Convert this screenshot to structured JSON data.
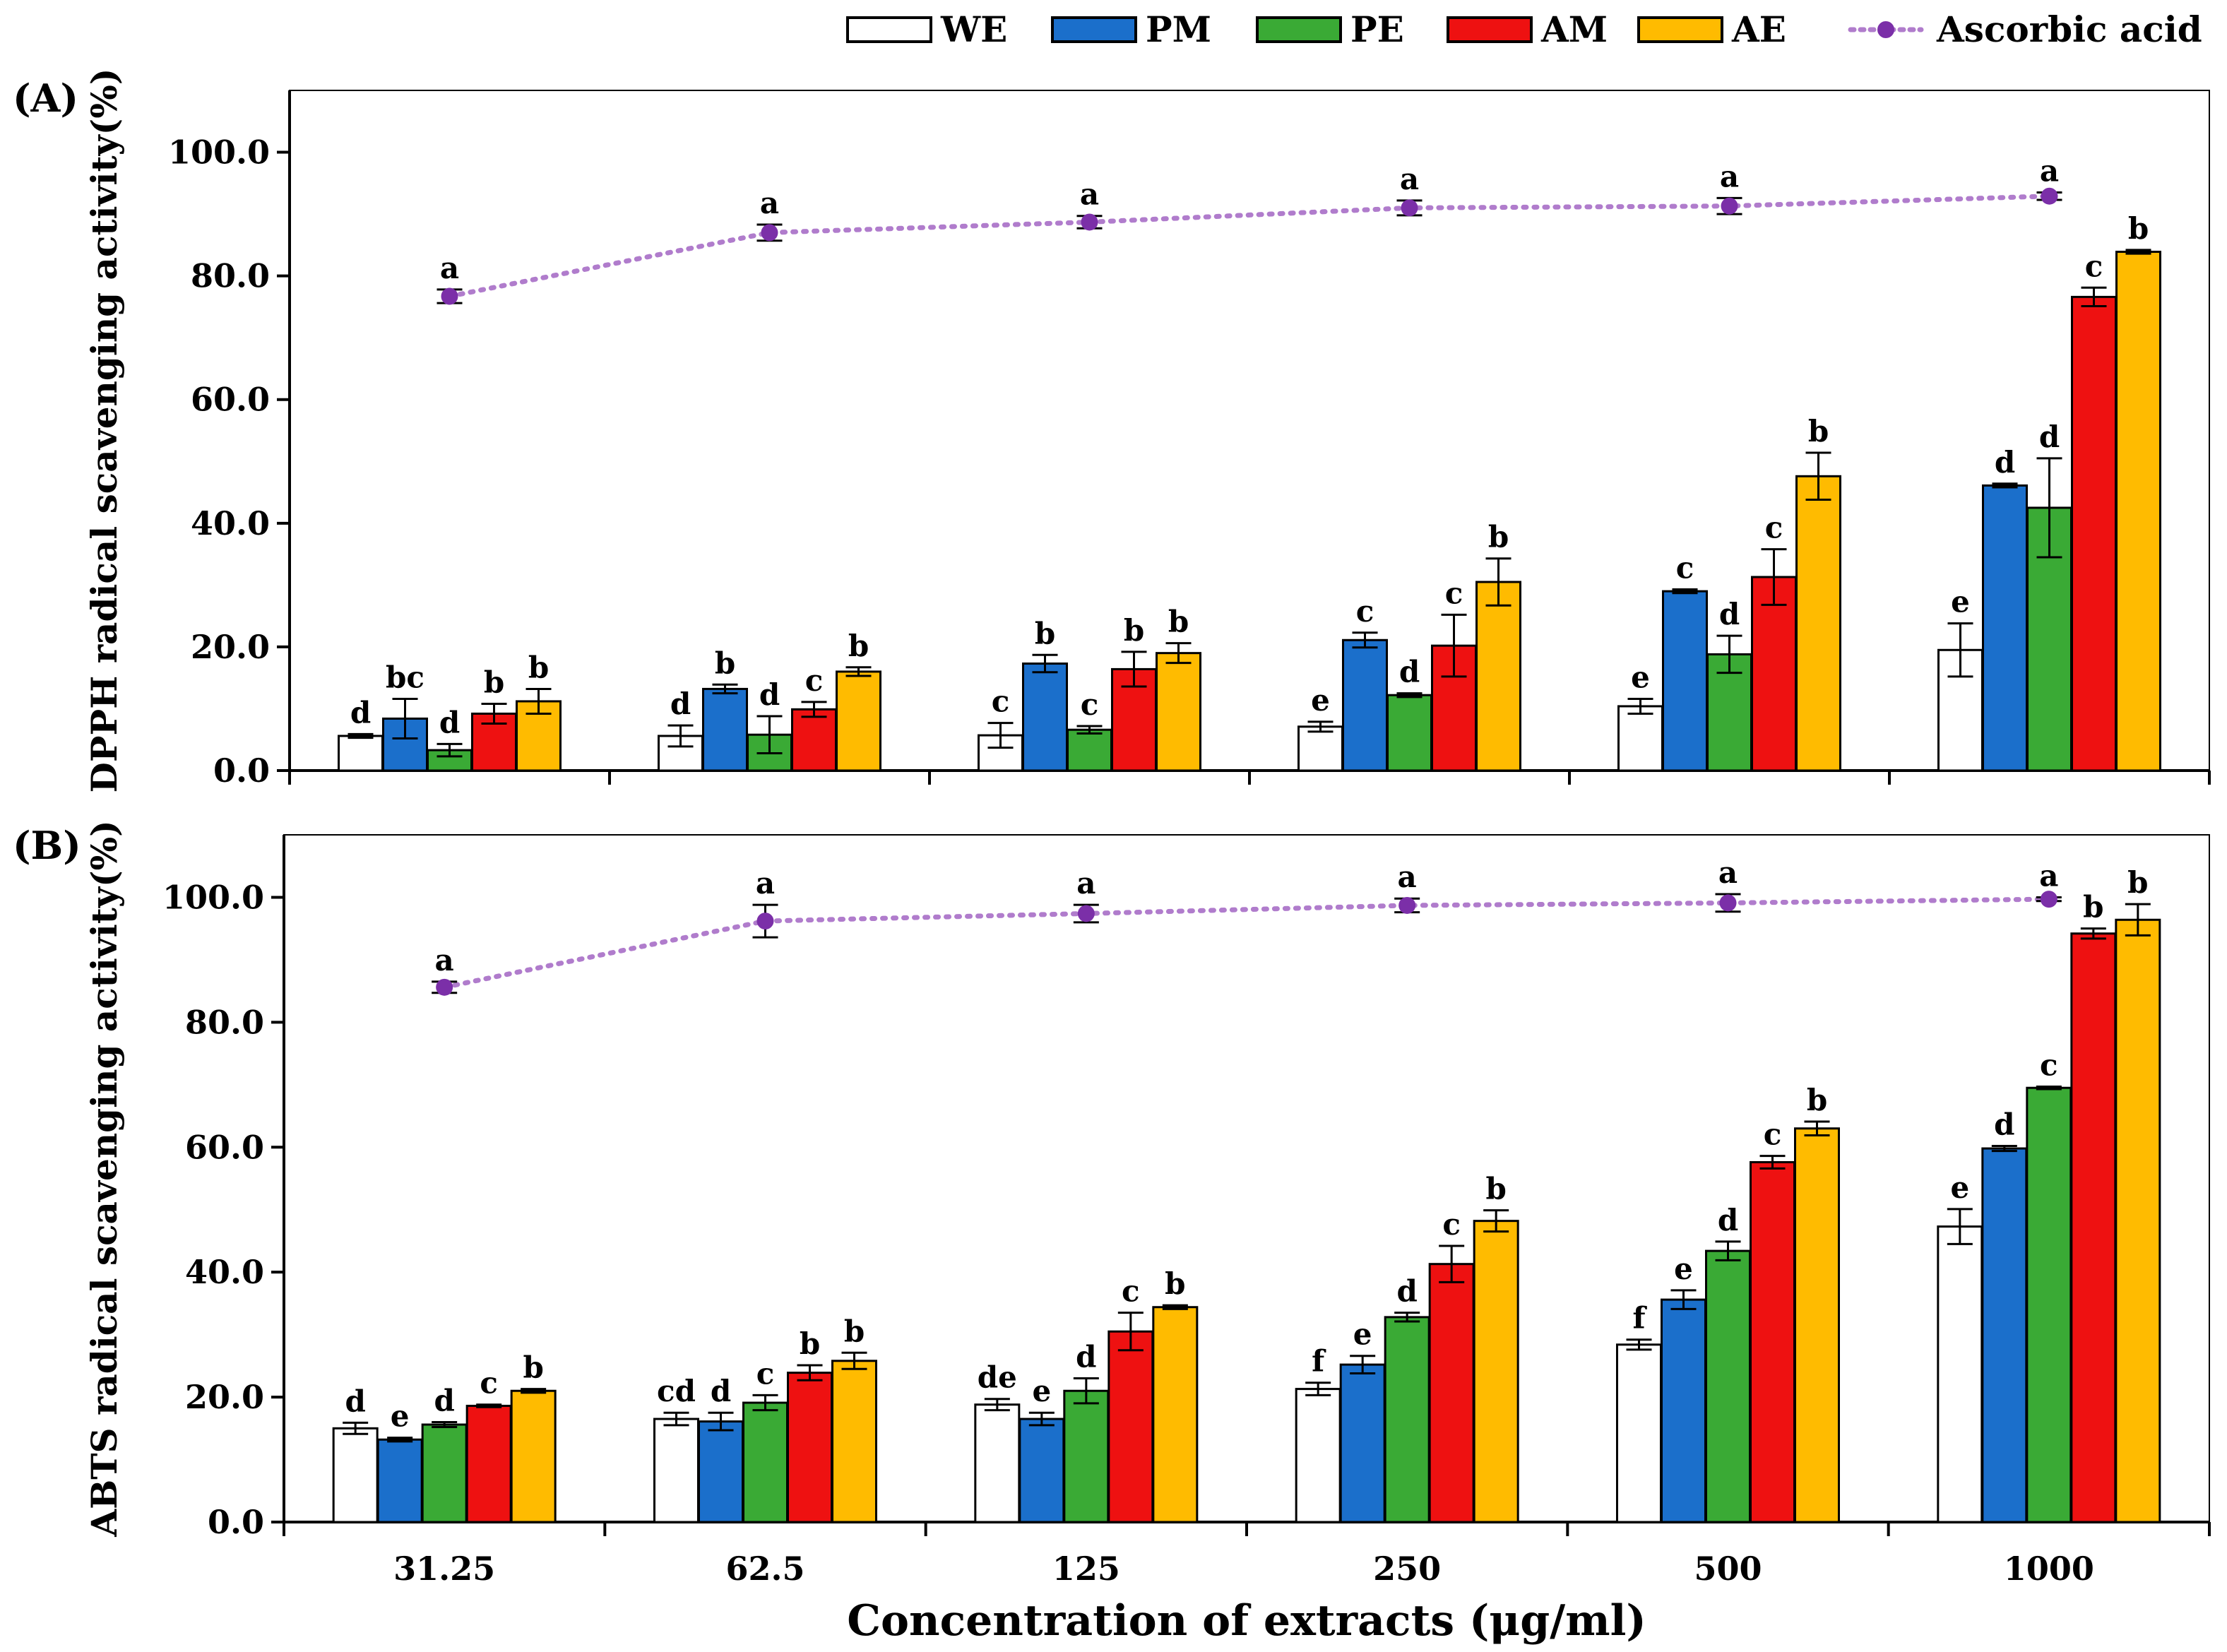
{
  "legend": {
    "items": [
      {
        "label": "WE",
        "kind": "bar",
        "color": "#ffffff"
      },
      {
        "label": "PM",
        "kind": "bar",
        "color": "#1b6fcb"
      },
      {
        "label": "PE",
        "kind": "bar",
        "color": "#3aaa35"
      },
      {
        "label": "AM",
        "kind": "bar",
        "color": "#ee1111"
      },
      {
        "label": "AE",
        "kind": "bar",
        "color": "#ffbb00"
      },
      {
        "label": "Ascorbic acid",
        "kind": "line",
        "color": "#8d3fb8"
      }
    ]
  },
  "colors": {
    "axis": "#000000",
    "error_bar": "#000000",
    "line": "#b07ccc",
    "marker": "#7b2fa8"
  },
  "chart_data": [
    {
      "type": "bar",
      "panel_label": "(A)",
      "ylabel": "DPPH radical scavenging activity(%)",
      "xlabel": "",
      "ylim": [
        0,
        110
      ],
      "yticks": [
        "0.0",
        "20.0",
        "40.0",
        "60.0",
        "80.0",
        "100.0"
      ],
      "ytick_values": [
        0,
        20,
        40,
        60,
        80,
        100
      ],
      "show_xtick_labels": false,
      "categories": [
        "31.25",
        "62.5",
        "125",
        "250",
        "500",
        "1000"
      ],
      "series": [
        {
          "name": "WE",
          "values": [
            5.6,
            5.6,
            5.7,
            7.1,
            10.4,
            19.5
          ],
          "errors": [
            0.3,
            1.7,
            2.0,
            0.8,
            1.2,
            4.3
          ],
          "letters": [
            "d",
            "d",
            "c",
            "e",
            "e",
            "e"
          ]
        },
        {
          "name": "PM",
          "values": [
            8.4,
            13.2,
            17.3,
            21.1,
            29.0,
            46.1
          ],
          "errors": [
            3.2,
            0.7,
            1.4,
            1.2,
            0.3,
            0.3
          ],
          "letters": [
            "bc",
            "b",
            "b",
            "c",
            "c",
            "d"
          ]
        },
        {
          "name": "PE",
          "values": [
            3.3,
            5.8,
            6.6,
            12.2,
            18.8,
            42.5
          ],
          "errors": [
            1.0,
            3.0,
            0.6,
            0.3,
            3.0,
            8.0
          ],
          "letters": [
            "d",
            "d",
            "c",
            "d",
            "d",
            "d"
          ]
        },
        {
          "name": "AM",
          "values": [
            9.2,
            9.9,
            16.4,
            20.2,
            31.3,
            76.6
          ],
          "errors": [
            1.6,
            1.2,
            2.8,
            5.0,
            4.5,
            1.5
          ],
          "letters": [
            "b",
            "c",
            "b",
            "c",
            "c",
            "c"
          ]
        },
        {
          "name": "AE",
          "values": [
            11.2,
            16.0,
            19.0,
            30.5,
            47.6,
            83.9
          ],
          "errors": [
            2.0,
            0.7,
            1.6,
            3.8,
            3.8,
            0.3
          ],
          "letters": [
            "b",
            "b",
            "b",
            "b",
            "b",
            "b"
          ]
        }
      ],
      "line_series": {
        "name": "Ascorbic acid",
        "values": [
          76.7,
          87.0,
          88.7,
          91.0,
          91.3,
          92.9
        ],
        "errors": [
          1.1,
          1.3,
          1.0,
          1.2,
          1.3,
          0.6
        ],
        "letters": [
          "a",
          "a",
          "a",
          "a",
          "a",
          "a"
        ]
      }
    },
    {
      "type": "bar",
      "panel_label": "(B)",
      "ylabel": "ABTS radical scavenging activity(%)",
      "xlabel": "Concentration of extracts (μg/ml)",
      "ylim": [
        0,
        110
      ],
      "yticks": [
        "0.0",
        "20.0",
        "40.0",
        "60.0",
        "80.0",
        "100.0"
      ],
      "ytick_values": [
        0,
        20,
        40,
        60,
        80,
        100
      ],
      "show_xtick_labels": true,
      "categories": [
        "31.25",
        "62.5",
        "125",
        "250",
        "500",
        "1000"
      ],
      "series": [
        {
          "name": "WE",
          "values": [
            15.0,
            16.5,
            18.8,
            21.3,
            28.4,
            47.3
          ],
          "errors": [
            0.9,
            1.0,
            0.9,
            1.0,
            0.8,
            2.8
          ],
          "letters": [
            "d",
            "cd",
            "de",
            "f",
            "f",
            "e"
          ]
        },
        {
          "name": "PM",
          "values": [
            13.2,
            16.1,
            16.5,
            25.2,
            35.6,
            59.8
          ],
          "errors": [
            0.3,
            1.4,
            1.0,
            1.4,
            1.5,
            0.4
          ],
          "letters": [
            "e",
            "d",
            "e",
            "e",
            "e",
            "d"
          ]
        },
        {
          "name": "PE",
          "values": [
            15.6,
            19.1,
            21.0,
            32.8,
            43.4,
            69.5
          ],
          "errors": [
            0.4,
            1.2,
            2.0,
            0.7,
            1.5,
            0.2
          ],
          "letters": [
            "d",
            "c",
            "d",
            "d",
            "d",
            "c"
          ]
        },
        {
          "name": "AM",
          "values": [
            18.6,
            23.9,
            30.5,
            41.3,
            57.6,
            94.2
          ],
          "errors": [
            0.2,
            1.2,
            3.0,
            2.9,
            1.0,
            0.8
          ],
          "letters": [
            "c",
            "b",
            "c",
            "c",
            "c",
            "b"
          ]
        },
        {
          "name": "AE",
          "values": [
            21.0,
            25.8,
            34.4,
            48.2,
            63.0,
            96.4
          ],
          "errors": [
            0.3,
            1.3,
            0.3,
            1.7,
            1.1,
            2.5
          ],
          "letters": [
            "b",
            "b",
            "b",
            "b",
            "b",
            "b"
          ]
        }
      ],
      "line_series": {
        "name": "Ascorbic acid",
        "values": [
          85.6,
          96.2,
          97.4,
          98.7,
          99.1,
          99.7
        ],
        "errors": [
          0.9,
          2.6,
          1.4,
          1.1,
          1.4,
          0.3
        ],
        "letters": [
          "a",
          "a",
          "a",
          "a",
          "a",
          "a"
        ]
      }
    }
  ]
}
